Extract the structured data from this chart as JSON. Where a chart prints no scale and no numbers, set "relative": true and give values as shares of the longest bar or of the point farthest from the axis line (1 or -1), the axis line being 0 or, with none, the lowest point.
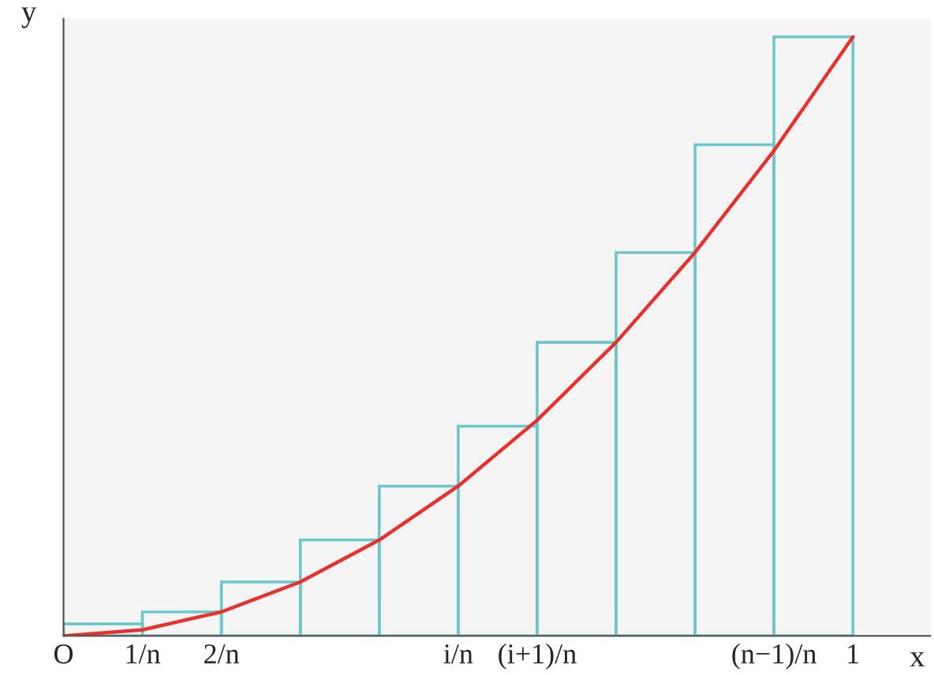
{
  "chart_data": {
    "type": "bar",
    "relative": true,
    "xlabel": "x",
    "ylabel": "y",
    "categories": [
      "O",
      "1/n",
      "2/n",
      null,
      null,
      "i/n",
      "(i+1)/n",
      null,
      null,
      "(n−1)/n",
      "1"
    ],
    "grid": false,
    "series": [
      {
        "color": "#6cc8c8",
        "values": [
          null,
          0.02,
          0.04,
          0.09,
          0.16,
          0.25,
          0.35,
          0.49,
          0.64,
          0.82,
          1
        ]
      },
      {
        "type": "line",
        "color": "#e8302c",
        "values": [
          0,
          0.01,
          0.04,
          0.09,
          0.16,
          0.25,
          0.36,
          0.49,
          0.64,
          0.81,
          1
        ]
      }
    ]
  }
}
